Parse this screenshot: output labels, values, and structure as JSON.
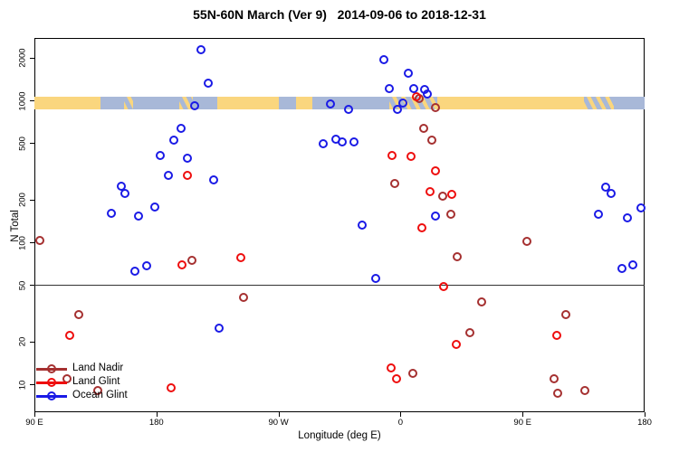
{
  "title": "55N-60N March (Ver 9)   2014-09-06 to 2018-12-31",
  "legend": {
    "items": [
      "Land Nadir",
      "Land Glint",
      "Ocean Glint"
    ]
  },
  "chart_data": {
    "type": "scatter",
    "title": "55N-60N March (Ver 9)   2014-09-06 to 2018-12-31",
    "xlabel": "Longitude (deg E)",
    "ylabel": "N Total",
    "x_axis": {
      "note": "longitude axis wraps eastward: 90E -> 180 -> 90W -> 0 -> 90E -> 180 (450 deg span)",
      "range_deg_along_axis": [
        0,
        450
      ],
      "ticks": [
        {
          "deg": 0,
          "label": "90 E"
        },
        {
          "deg": 90,
          "label": "180"
        },
        {
          "deg": 180,
          "label": "90 W"
        },
        {
          "deg": 270,
          "label": "0"
        },
        {
          "deg": 360,
          "label": "90 E"
        },
        {
          "deg": 450,
          "label": "180"
        }
      ]
    },
    "y_axis": {
      "scale": "log",
      "ticks": [
        10,
        20,
        50,
        100,
        200,
        500,
        1000,
        2000
      ],
      "range": [
        6,
        2700
      ]
    },
    "reference_line_n": 50,
    "land_ocean_band": {
      "n_center": 1000,
      "colors": {
        "land": "#fad67e",
        "ocean": "#a8b8d8"
      },
      "segments": [
        {
          "from": 0,
          "to": 49,
          "type": "land"
        },
        {
          "from": 49,
          "to": 66,
          "type": "ocean"
        },
        {
          "from": 66,
          "to": 73,
          "type": "mixed"
        },
        {
          "from": 73,
          "to": 107,
          "type": "ocean"
        },
        {
          "from": 107,
          "to": 117,
          "type": "mixed"
        },
        {
          "from": 117,
          "to": 135,
          "type": "ocean"
        },
        {
          "from": 135,
          "to": 180,
          "type": "land"
        },
        {
          "from": 180,
          "to": 193,
          "type": "ocean"
        },
        {
          "from": 193,
          "to": 205,
          "type": "land"
        },
        {
          "from": 205,
          "to": 262,
          "type": "ocean"
        },
        {
          "from": 262,
          "to": 297,
          "type": "mixed"
        },
        {
          "from": 297,
          "to": 405,
          "type": "land"
        },
        {
          "from": 405,
          "to": 427,
          "type": "mixed"
        },
        {
          "from": 427,
          "to": 450,
          "type": "ocean"
        }
      ]
    },
    "series": [
      {
        "name": "Land Nadir",
        "color": "#a53030",
        "points_format": [
          "deg_along_axis",
          "n_total"
        ],
        "points": [
          [
            4,
            103
          ],
          [
            116,
            75
          ],
          [
            154,
            41
          ],
          [
            33,
            31
          ],
          [
            24,
            11
          ],
          [
            47,
            9
          ],
          [
            279,
            12
          ],
          [
            284,
            1030
          ],
          [
            296,
            890
          ],
          [
            287,
            635
          ],
          [
            293,
            525
          ],
          [
            266,
            260
          ],
          [
            301,
            210
          ],
          [
            307,
            157
          ],
          [
            312,
            79
          ],
          [
            363,
            102
          ],
          [
            330,
            38
          ],
          [
            392,
            31
          ],
          [
            321,
            23
          ],
          [
            383,
            11
          ],
          [
            386,
            8.6
          ],
          [
            406,
            9
          ]
        ]
      },
      {
        "name": "Land Glint",
        "color": "#ee0e0e",
        "points_format": [
          "deg_along_axis",
          "n_total"
        ],
        "points": [
          [
            113,
            295
          ],
          [
            282,
            1060
          ],
          [
            264,
            410
          ],
          [
            278,
            403
          ],
          [
            296,
            318
          ],
          [
            292,
            227
          ],
          [
            308,
            218
          ],
          [
            286,
            126
          ],
          [
            109,
            69
          ],
          [
            152,
            78
          ],
          [
            26,
            22
          ],
          [
            101,
            9.4
          ],
          [
            302,
            49
          ],
          [
            311,
            19
          ],
          [
            385,
            22
          ],
          [
            263,
            13
          ],
          [
            267,
            11
          ]
        ]
      },
      {
        "name": "Ocean Glint",
        "color": "#1a1ae6",
        "points_format": [
          "deg_along_axis",
          "n_total"
        ],
        "points": [
          [
            123,
            2270
          ],
          [
            128,
            1320
          ],
          [
            118,
            915
          ],
          [
            218,
            940
          ],
          [
            232,
            865
          ],
          [
            108,
            635
          ],
          [
            103,
            525
          ],
          [
            93,
            410
          ],
          [
            113,
            390
          ],
          [
            99,
            295
          ],
          [
            132,
            275
          ],
          [
            64,
            250
          ],
          [
            67,
            220
          ],
          [
            89,
            177
          ],
          [
            57,
            160
          ],
          [
            77,
            153
          ],
          [
            213,
            495
          ],
          [
            222,
            530
          ],
          [
            227,
            510
          ],
          [
            236,
            510
          ],
          [
            242,
            132
          ],
          [
            252,
            56
          ],
          [
            258,
            1930
          ],
          [
            276,
            1550
          ],
          [
            262,
            1210
          ],
          [
            280,
            1210
          ],
          [
            288,
            1190
          ],
          [
            290,
            1110
          ],
          [
            272,
            955
          ],
          [
            268,
            865
          ],
          [
            296,
            153
          ],
          [
            421,
            245
          ],
          [
            425,
            220
          ],
          [
            416,
            157
          ],
          [
            437,
            148
          ],
          [
            447,
            175
          ],
          [
            433,
            65
          ],
          [
            441,
            69
          ],
          [
            136,
            25
          ],
          [
            74,
            63
          ],
          [
            83,
            68
          ]
        ]
      }
    ]
  }
}
